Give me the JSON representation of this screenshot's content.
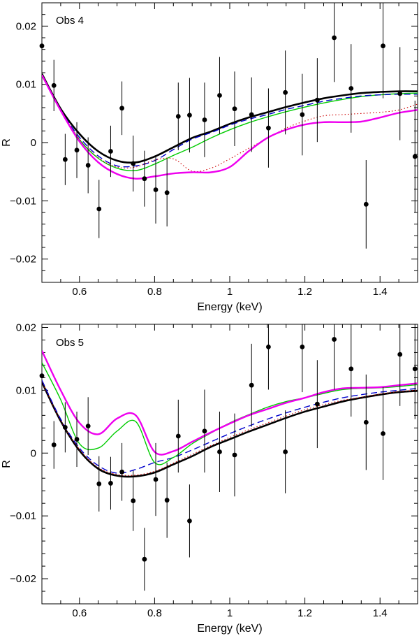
{
  "chart_data": [
    {
      "type": "scatter",
      "title": "Obs 4",
      "xlabel": "Energy (keV)",
      "ylabel": "R",
      "xlim": [
        0.5,
        1.5
      ],
      "ylim": [
        -0.024,
        0.024
      ],
      "xticks": [
        0.6,
        0.8,
        1,
        1.2,
        1.4
      ],
      "xtick_labels": [
        "0.6",
        "0.8",
        "1",
        "1.2",
        "1.4"
      ],
      "yticks": [
        -0.02,
        -0.01,
        0,
        0.01,
        0.02
      ],
      "ytick_labels": [
        "−0.02",
        "−0.01",
        "0",
        "0.01",
        "0.02"
      ],
      "points": [
        {
          "x": 0.5,
          "y": 0.0166,
          "err": 0.0
        },
        {
          "x": 0.532,
          "y": 0.0098,
          "err": 0.0044
        },
        {
          "x": 0.562,
          "y": -0.0029,
          "err": 0.0044
        },
        {
          "x": 0.593,
          "y": -0.0013,
          "err": 0.0048
        },
        {
          "x": 0.623,
          "y": -0.0039,
          "err": 0.0048
        },
        {
          "x": 0.652,
          "y": -0.0114,
          "err": 0.005
        },
        {
          "x": 0.683,
          "y": -0.0015,
          "err": 0.0044
        },
        {
          "x": 0.713,
          "y": 0.0059,
          "err": 0.0046
        },
        {
          "x": 0.743,
          "y": -0.0036,
          "err": 0.0048
        },
        {
          "x": 0.773,
          "y": -0.0062,
          "err": 0.0048
        },
        {
          "x": 0.803,
          "y": -0.0081,
          "err": 0.0058
        },
        {
          "x": 0.833,
          "y": -0.0086,
          "err": 0.0058
        },
        {
          "x": 0.863,
          "y": 0.0045,
          "err": 0.0058
        },
        {
          "x": 0.893,
          "y": 0.0047,
          "err": 0.0064
        },
        {
          "x": 0.933,
          "y": 0.0039,
          "err": 0.0064
        },
        {
          "x": 0.973,
          "y": 0.0081,
          "err": 0.0066
        },
        {
          "x": 1.013,
          "y": 0.0058,
          "err": 0.0064
        },
        {
          "x": 1.058,
          "y": 0.0048,
          "err": 0.0064
        },
        {
          "x": 1.103,
          "y": 0.0025,
          "err": 0.0068
        },
        {
          "x": 1.148,
          "y": 0.0086,
          "err": 0.0072
        },
        {
          "x": 1.193,
          "y": 0.0048,
          "err": 0.007
        },
        {
          "x": 1.233,
          "y": 0.0073,
          "err": 0.0072
        },
        {
          "x": 1.278,
          "y": 0.018,
          "err": 0.0076
        },
        {
          "x": 1.323,
          "y": 0.0093,
          "err": 0.0076
        },
        {
          "x": 1.363,
          "y": -0.0106,
          "err": 0.0076
        },
        {
          "x": 1.408,
          "y": 0.0166,
          "err": 0.009
        },
        {
          "x": 1.453,
          "y": 0.0084,
          "err": 0.008
        },
        {
          "x": 1.493,
          "y": -0.0024,
          "err": 0.0096
        }
      ],
      "series": [
        {
          "color": "#000000",
          "style": "solid",
          "width": 2.6,
          "x": [
            0.5,
            0.55,
            0.6,
            0.65,
            0.7,
            0.75,
            0.8,
            0.85,
            0.9,
            0.95,
            1.0,
            1.05,
            1.1,
            1.15,
            1.2,
            1.25,
            1.3,
            1.35,
            1.4,
            1.45,
            1.5
          ],
          "y": [
            0.0118,
            0.0058,
            0.0015,
            -0.0015,
            -0.0031,
            -0.0034,
            -0.0024,
            -0.0008,
            0.0008,
            0.0019,
            0.0032,
            0.0043,
            0.0052,
            0.0061,
            0.0069,
            0.0076,
            0.0081,
            0.0085,
            0.0087,
            0.0088,
            0.0088
          ]
        },
        {
          "color": "#00cc00",
          "style": "solid",
          "width": 1.4,
          "x": [
            0.5,
            0.55,
            0.6,
            0.65,
            0.7,
            0.75,
            0.8,
            0.85,
            0.9,
            0.95,
            1.0,
            1.05,
            1.1,
            1.15,
            1.2,
            1.25,
            1.3,
            1.35,
            1.4,
            1.45,
            1.5
          ],
          "y": [
            0.0115,
            0.0055,
            0.0005,
            -0.0027,
            -0.0044,
            -0.0048,
            -0.0037,
            -0.0022,
            -0.0008,
            0.0008,
            0.0022,
            0.0034,
            0.0044,
            0.0053,
            0.0061,
            0.0068,
            0.0074,
            0.0079,
            0.0082,
            0.0084,
            0.0085
          ]
        },
        {
          "color": "#0000cc",
          "style": "dashed",
          "width": 1.4,
          "x": [
            0.5,
            0.55,
            0.6,
            0.65,
            0.7,
            0.75,
            0.8,
            0.85,
            0.9,
            0.95,
            1.0,
            1.05,
            1.1,
            1.15,
            1.2,
            1.25,
            1.3,
            1.35,
            1.4,
            1.45,
            1.5
          ],
          "y": [
            0.0116,
            0.0056,
            0.0009,
            -0.0023,
            -0.004,
            -0.004,
            -0.0031,
            -0.0012,
            0.0006,
            0.0017,
            0.003,
            0.004,
            0.0048,
            0.0057,
            0.0064,
            0.0071,
            0.0076,
            0.008,
            0.0082,
            0.0083,
            0.0083
          ]
        },
        {
          "color": "#cc0000",
          "style": "dotted",
          "width": 1.1,
          "x": [
            0.5,
            0.55,
            0.6,
            0.65,
            0.7,
            0.75,
            0.8,
            0.85,
            0.9,
            0.95,
            1.0,
            1.05,
            1.1,
            1.15,
            1.2,
            1.25,
            1.3,
            1.35,
            1.4,
            1.45,
            1.5
          ],
          "y": [
            0.0116,
            0.0056,
            0.0006,
            -0.0026,
            -0.0042,
            -0.0042,
            -0.003,
            -0.0028,
            -0.0049,
            -0.0044,
            -0.0028,
            -0.001,
            0.0007,
            0.0025,
            0.0037,
            0.0046,
            0.0048,
            0.005,
            0.0052,
            0.0056,
            0.0066
          ]
        },
        {
          "color": "#ee00ee",
          "style": "solid",
          "width": 2.4,
          "x": [
            0.5,
            0.55,
            0.6,
            0.65,
            0.7,
            0.75,
            0.8,
            0.85,
            0.9,
            0.95,
            1.0,
            1.05,
            1.1,
            1.15,
            1.2,
            1.25,
            1.3,
            1.35,
            1.4,
            1.45,
            1.5
          ],
          "y": [
            0.0116,
            0.0055,
            0.0002,
            -0.0034,
            -0.0054,
            -0.0062,
            -0.0058,
            -0.0053,
            -0.0051,
            -0.0051,
            -0.0042,
            -0.0015,
            0.0008,
            0.0022,
            0.0031,
            0.0035,
            0.0035,
            0.0036,
            0.0043,
            0.0051,
            0.0056
          ]
        }
      ]
    },
    {
      "type": "scatter",
      "title": "Obs 5",
      "xlabel": "Energy (keV)",
      "ylabel": "R",
      "xlim": [
        0.5,
        1.5
      ],
      "ylim": [
        -0.024,
        0.0205
      ],
      "xticks": [
        0.6,
        0.8,
        1,
        1.2,
        1.4
      ],
      "xtick_labels": [
        "0.6",
        "0.8",
        "1",
        "1.2",
        "1.4"
      ],
      "yticks": [
        -0.02,
        -0.01,
        0,
        0.01,
        0.02
      ],
      "ytick_labels": [
        "−0.02",
        "−0.01",
        "0",
        "0.01",
        "0.02"
      ],
      "points": [
        {
          "x": 0.5,
          "y": 0.0123,
          "err": 0.0
        },
        {
          "x": 0.532,
          "y": 0.0013,
          "err": 0.0038
        },
        {
          "x": 0.562,
          "y": 0.0041,
          "err": 0.004
        },
        {
          "x": 0.593,
          "y": 0.0022,
          "err": 0.0044
        },
        {
          "x": 0.623,
          "y": 0.0043,
          "err": 0.0046
        },
        {
          "x": 0.652,
          "y": -0.0049,
          "err": 0.0044
        },
        {
          "x": 0.683,
          "y": -0.0048,
          "err": 0.0042
        },
        {
          "x": 0.713,
          "y": -0.003,
          "err": 0.0046
        },
        {
          "x": 0.743,
          "y": -0.0076,
          "err": 0.0048
        },
        {
          "x": 0.773,
          "y": -0.0169,
          "err": 0.005
        },
        {
          "x": 0.803,
          "y": -0.0042,
          "err": 0.0058
        },
        {
          "x": 0.833,
          "y": -0.0075,
          "err": 0.006
        },
        {
          "x": 0.863,
          "y": 0.0027,
          "err": 0.0058
        },
        {
          "x": 0.893,
          "y": -0.0108,
          "err": 0.0058
        },
        {
          "x": 0.933,
          "y": 0.0035,
          "err": 0.0066
        },
        {
          "x": 0.973,
          "y": 0.0002,
          "err": 0.0064
        },
        {
          "x": 1.013,
          "y": -0.0003,
          "err": 0.0066
        },
        {
          "x": 1.058,
          "y": 0.0108,
          "err": 0.0066
        },
        {
          "x": 1.103,
          "y": 0.0169,
          "err": 0.0068
        },
        {
          "x": 1.148,
          "y": 0.0002,
          "err": 0.0066
        },
        {
          "x": 1.193,
          "y": 0.0169,
          "err": 0.0072
        },
        {
          "x": 1.233,
          "y": 0.0078,
          "err": 0.007
        },
        {
          "x": 1.278,
          "y": 0.0181,
          "err": 0.008
        },
        {
          "x": 1.323,
          "y": 0.0134,
          "err": 0.0076
        },
        {
          "x": 1.363,
          "y": 0.0049,
          "err": 0.0076
        },
        {
          "x": 1.408,
          "y": 0.0031,
          "err": 0.0074
        },
        {
          "x": 1.453,
          "y": 0.0157,
          "err": 0.0082
        },
        {
          "x": 1.493,
          "y": 0.0134,
          "err": 0.008
        }
      ],
      "series": [
        {
          "color": "#000000",
          "style": "solid",
          "width": 2.6,
          "x": [
            0.5,
            0.55,
            0.6,
            0.65,
            0.7,
            0.75,
            0.8,
            0.85,
            0.9,
            0.95,
            1.0,
            1.05,
            1.1,
            1.15,
            1.2,
            1.25,
            1.3,
            1.35,
            1.4,
            1.45,
            1.5
          ],
          "y": [
            0.0113,
            0.0051,
            0.0004,
            -0.0025,
            -0.0036,
            -0.0037,
            -0.0031,
            -0.0018,
            -0.0005,
            0.001,
            0.0022,
            0.0034,
            0.0045,
            0.0056,
            0.0066,
            0.0074,
            0.0082,
            0.0088,
            0.0093,
            0.0097,
            0.0099
          ]
        },
        {
          "color": "#cc0000",
          "style": "dotted",
          "width": 1.1,
          "x": [
            0.5,
            0.55,
            0.6,
            0.65,
            0.7,
            0.75,
            0.8,
            0.85,
            0.9,
            0.95,
            1.0,
            1.05,
            1.1,
            1.15,
            1.2,
            1.25,
            1.3,
            1.35,
            1.4,
            1.45,
            1.5
          ],
          "y": [
            0.0114,
            0.0052,
            0.0006,
            -0.0023,
            -0.0034,
            -0.0035,
            -0.0029,
            -0.0016,
            -0.0002,
            0.0012,
            0.0025,
            0.0037,
            0.0048,
            0.0059,
            0.0069,
            0.0077,
            0.0084,
            0.0089,
            0.0094,
            0.0098,
            0.01
          ]
        },
        {
          "color": "#0000cc",
          "style": "dashed",
          "width": 1.4,
          "x": [
            0.5,
            0.55,
            0.6,
            0.65,
            0.7,
            0.75,
            0.8,
            0.85,
            0.9,
            0.95,
            1.0,
            1.05,
            1.1,
            1.15,
            1.2,
            1.25,
            1.3,
            1.35,
            1.4,
            1.45,
            1.5
          ],
          "y": [
            0.0116,
            0.0054,
            0.0008,
            -0.002,
            -0.0032,
            -0.0026,
            -0.0015,
            -0.0007,
            0.0005,
            0.0018,
            0.0031,
            0.0043,
            0.0054,
            0.0064,
            0.0073,
            0.0081,
            0.0088,
            0.0093,
            0.0097,
            0.01,
            0.0103
          ]
        },
        {
          "color": "#00cc00",
          "style": "solid",
          "width": 1.4,
          "x": [
            0.5,
            0.55,
            0.6,
            0.65,
            0.7,
            0.75,
            0.8,
            0.85,
            0.9,
            0.95,
            1.0,
            1.05,
            1.1,
            1.15,
            1.2,
            1.25,
            1.3,
            1.35,
            1.4,
            1.45,
            1.5
          ],
          "y": [
            0.0144,
            0.0085,
            0.0015,
            0.0008,
            0.0035,
            0.005,
            -0.0015,
            -0.0007,
            0.0015,
            0.0032,
            0.0048,
            0.0061,
            0.0073,
            0.0082,
            0.0088,
            0.0095,
            0.0101,
            0.0103,
            0.0104,
            0.0106,
            0.0109
          ]
        },
        {
          "color": "#ee00ee",
          "style": "solid",
          "width": 2.4,
          "x": [
            0.5,
            0.55,
            0.6,
            0.65,
            0.7,
            0.75,
            0.8,
            0.85,
            0.9,
            0.95,
            1.0,
            1.05,
            1.1,
            1.15,
            1.2,
            1.25,
            1.3,
            1.35,
            1.4,
            1.45,
            1.5
          ],
          "y": [
            0.0163,
            0.01,
            0.0048,
            0.003,
            0.0055,
            0.006,
            0.0002,
            0.0003,
            0.0018,
            0.0033,
            0.0047,
            0.006,
            0.007,
            0.008,
            0.0088,
            0.0097,
            0.0103,
            0.0104,
            0.0105,
            0.0108,
            0.0111
          ]
        }
      ]
    }
  ]
}
